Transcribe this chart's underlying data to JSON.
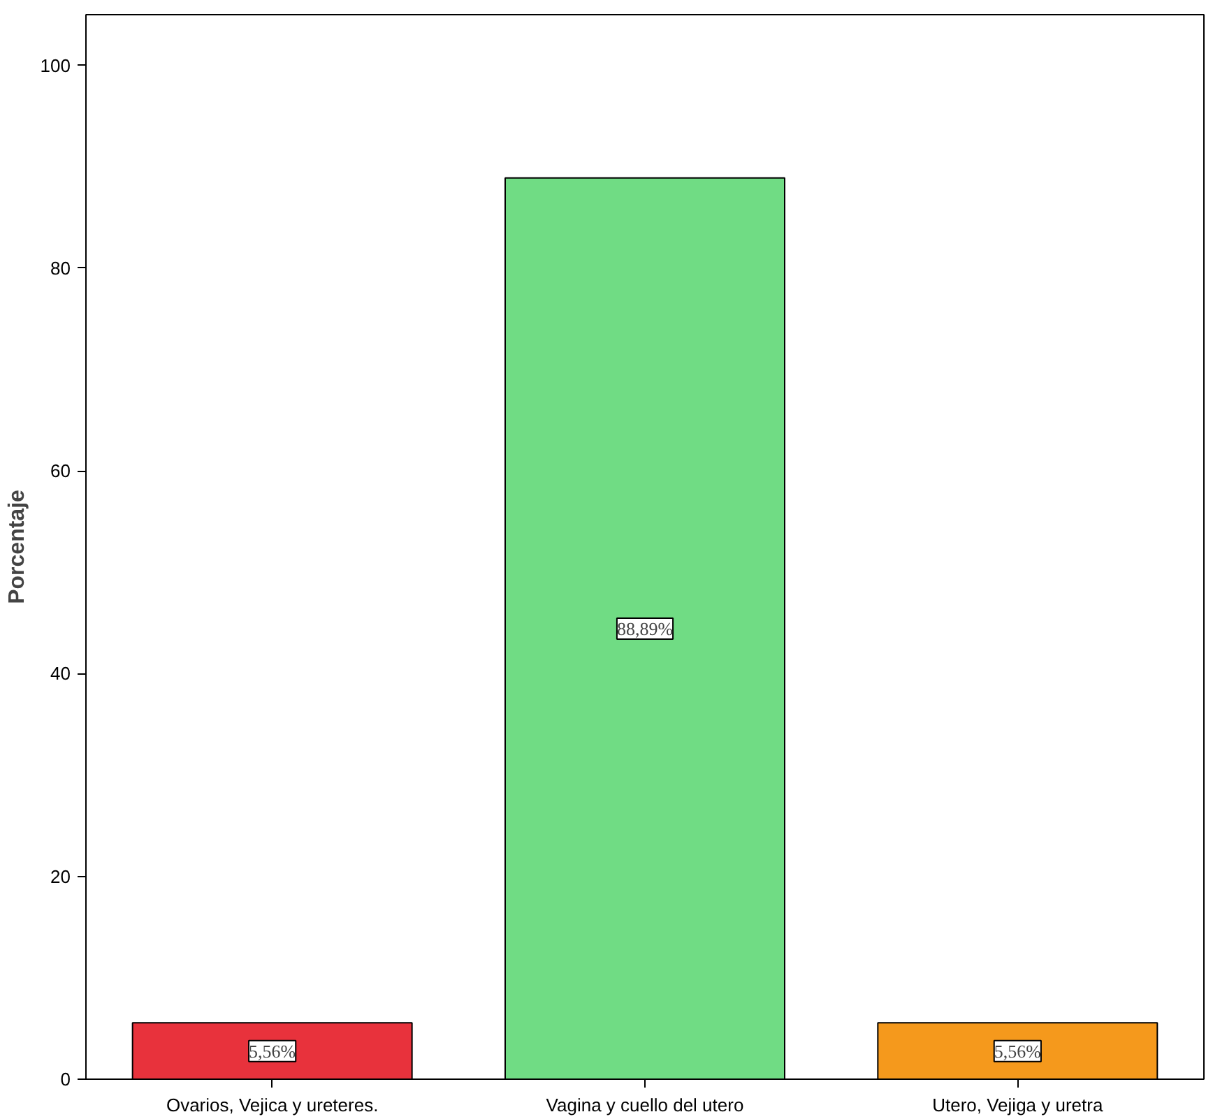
{
  "chart_data": {
    "type": "bar",
    "ylabel": "Porcentaje",
    "categories": [
      "Ovarios, Vejica y ureteres.",
      "Vagina y cuello del utero",
      "Utero, Vejiga y uretra"
    ],
    "values": [
      5.56,
      88.89,
      5.56
    ],
    "colors": [
      "#e8323c",
      "#70dc84",
      "#f5991c"
    ],
    "value_labels": [
      "5,56%",
      "88,89%",
      "5,56%"
    ],
    "ylim": [
      0,
      105
    ],
    "yticks": [
      0,
      20,
      40,
      60,
      80,
      100
    ],
    "grid": false
  }
}
